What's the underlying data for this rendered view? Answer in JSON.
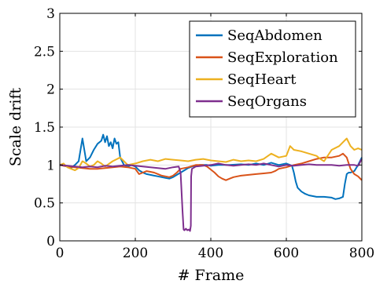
{
  "chart_data": {
    "type": "line",
    "title": "",
    "xlabel": "# Frame",
    "ylabel": "Scale drift",
    "xlim": [
      0,
      800
    ],
    "ylim": [
      0,
      3
    ],
    "xticks": [
      0,
      200,
      400,
      600,
      800
    ],
    "yticks": [
      0,
      0.5,
      1,
      1.5,
      2,
      2.5,
      3
    ],
    "ytick_labels": [
      "0",
      "0.5",
      "1",
      "1.5",
      "2",
      "2.5",
      "3"
    ],
    "grid": true,
    "legend_position": "top-right",
    "series": [
      {
        "name": "SeqAbdomen",
        "color": "#0072BD",
        "points": [
          [
            0,
            1.0
          ],
          [
            10,
            0.99
          ],
          [
            20,
            0.98
          ],
          [
            30,
            0.96
          ],
          [
            40,
            1.0
          ],
          [
            50,
            1.05
          ],
          [
            55,
            1.2
          ],
          [
            60,
            1.35
          ],
          [
            65,
            1.2
          ],
          [
            70,
            1.05
          ],
          [
            80,
            1.1
          ],
          [
            90,
            1.2
          ],
          [
            100,
            1.28
          ],
          [
            110,
            1.32
          ],
          [
            115,
            1.4
          ],
          [
            120,
            1.3
          ],
          [
            125,
            1.38
          ],
          [
            130,
            1.25
          ],
          [
            135,
            1.3
          ],
          [
            140,
            1.22
          ],
          [
            145,
            1.35
          ],
          [
            150,
            1.28
          ],
          [
            155,
            1.3
          ],
          [
            160,
            1.1
          ],
          [
            170,
            1.0
          ],
          [
            180,
            0.98
          ],
          [
            190,
            1.0
          ],
          [
            200,
            0.98
          ],
          [
            210,
            0.93
          ],
          [
            220,
            0.9
          ],
          [
            230,
            0.88
          ],
          [
            240,
            0.87
          ],
          [
            250,
            0.86
          ],
          [
            260,
            0.85
          ],
          [
            270,
            0.84
          ],
          [
            280,
            0.83
          ],
          [
            290,
            0.82
          ],
          [
            300,
            0.84
          ],
          [
            310,
            0.87
          ],
          [
            320,
            0.9
          ],
          [
            330,
            0.93
          ],
          [
            340,
            0.96
          ],
          [
            350,
            0.98
          ],
          [
            370,
            1.0
          ],
          [
            390,
            1.0
          ],
          [
            400,
            0.99
          ],
          [
            420,
            1.0
          ],
          [
            450,
            1.0
          ],
          [
            480,
            1.01
          ],
          [
            500,
            1.0
          ],
          [
            520,
            1.02
          ],
          [
            540,
            1.0
          ],
          [
            560,
            1.03
          ],
          [
            580,
            1.0
          ],
          [
            600,
            1.02
          ],
          [
            610,
            1.0
          ],
          [
            615,
            0.99
          ],
          [
            620,
            0.9
          ],
          [
            625,
            0.78
          ],
          [
            630,
            0.7
          ],
          [
            640,
            0.65
          ],
          [
            650,
            0.62
          ],
          [
            660,
            0.6
          ],
          [
            680,
            0.58
          ],
          [
            700,
            0.58
          ],
          [
            720,
            0.57
          ],
          [
            730,
            0.55
          ],
          [
            740,
            0.56
          ],
          [
            750,
            0.58
          ],
          [
            755,
            0.75
          ],
          [
            760,
            0.88
          ],
          [
            765,
            0.9
          ],
          [
            770,
            0.9
          ],
          [
            780,
            0.92
          ],
          [
            790,
            1.0
          ],
          [
            800,
            1.1
          ]
        ]
      },
      {
        "name": "SeqExploration",
        "color": "#D95319",
        "points": [
          [
            0,
            1.0
          ],
          [
            20,
            0.98
          ],
          [
            40,
            0.97
          ],
          [
            60,
            0.96
          ],
          [
            80,
            0.95
          ],
          [
            100,
            0.95
          ],
          [
            120,
            0.96
          ],
          [
            140,
            0.97
          ],
          [
            160,
            0.98
          ],
          [
            180,
            0.97
          ],
          [
            200,
            0.95
          ],
          [
            210,
            0.88
          ],
          [
            220,
            0.9
          ],
          [
            230,
            0.92
          ],
          [
            240,
            0.91
          ],
          [
            250,
            0.9
          ],
          [
            260,
            0.88
          ],
          [
            270,
            0.86
          ],
          [
            280,
            0.85
          ],
          [
            290,
            0.84
          ],
          [
            300,
            0.86
          ],
          [
            310,
            0.9
          ],
          [
            320,
            0.95
          ],
          [
            340,
            0.97
          ],
          [
            360,
            1.0
          ],
          [
            380,
            1.0
          ],
          [
            390,
            0.98
          ],
          [
            400,
            0.94
          ],
          [
            410,
            0.9
          ],
          [
            420,
            0.85
          ],
          [
            430,
            0.82
          ],
          [
            440,
            0.8
          ],
          [
            450,
            0.82
          ],
          [
            460,
            0.84
          ],
          [
            470,
            0.85
          ],
          [
            480,
            0.86
          ],
          [
            500,
            0.87
          ],
          [
            520,
            0.88
          ],
          [
            540,
            0.89
          ],
          [
            560,
            0.9
          ],
          [
            570,
            0.92
          ],
          [
            580,
            0.95
          ],
          [
            600,
            0.97
          ],
          [
            620,
            1.0
          ],
          [
            640,
            1.02
          ],
          [
            660,
            1.05
          ],
          [
            680,
            1.08
          ],
          [
            700,
            1.1
          ],
          [
            720,
            1.1
          ],
          [
            740,
            1.12
          ],
          [
            750,
            1.15
          ],
          [
            760,
            1.1
          ],
          [
            770,
            0.95
          ],
          [
            780,
            0.88
          ],
          [
            790,
            0.85
          ],
          [
            800,
            0.8
          ]
        ]
      },
      {
        "name": "SeqHeart",
        "color": "#EDB120",
        "points": [
          [
            0,
            1.0
          ],
          [
            10,
            1.02
          ],
          [
            20,
            0.97
          ],
          [
            30,
            0.95
          ],
          [
            40,
            0.93
          ],
          [
            50,
            0.96
          ],
          [
            60,
            1.05
          ],
          [
            70,
            1.02
          ],
          [
            80,
            0.98
          ],
          [
            90,
            1.0
          ],
          [
            100,
            1.05
          ],
          [
            110,
            1.02
          ],
          [
            120,
            0.98
          ],
          [
            140,
            1.05
          ],
          [
            160,
            1.1
          ],
          [
            170,
            1.05
          ],
          [
            180,
            1.0
          ],
          [
            200,
            1.02
          ],
          [
            220,
            1.05
          ],
          [
            240,
            1.07
          ],
          [
            260,
            1.05
          ],
          [
            280,
            1.08
          ],
          [
            300,
            1.07
          ],
          [
            320,
            1.06
          ],
          [
            340,
            1.05
          ],
          [
            360,
            1.07
          ],
          [
            380,
            1.08
          ],
          [
            400,
            1.06
          ],
          [
            420,
            1.05
          ],
          [
            440,
            1.04
          ],
          [
            460,
            1.07
          ],
          [
            480,
            1.05
          ],
          [
            500,
            1.06
          ],
          [
            520,
            1.05
          ],
          [
            540,
            1.08
          ],
          [
            560,
            1.15
          ],
          [
            580,
            1.1
          ],
          [
            600,
            1.12
          ],
          [
            610,
            1.25
          ],
          [
            620,
            1.2
          ],
          [
            640,
            1.18
          ],
          [
            660,
            1.15
          ],
          [
            680,
            1.12
          ],
          [
            690,
            1.08
          ],
          [
            700,
            1.05
          ],
          [
            720,
            1.2
          ],
          [
            740,
            1.25
          ],
          [
            750,
            1.3
          ],
          [
            760,
            1.35
          ],
          [
            770,
            1.25
          ],
          [
            780,
            1.2
          ],
          [
            790,
            1.22
          ],
          [
            800,
            1.2
          ]
        ]
      },
      {
        "name": "SeqOrgans",
        "color": "#7E2F8E",
        "points": [
          [
            0,
            1.0
          ],
          [
            20,
            0.99
          ],
          [
            40,
            0.98
          ],
          [
            60,
            0.97
          ],
          [
            80,
            0.98
          ],
          [
            100,
            0.97
          ],
          [
            120,
            0.99
          ],
          [
            140,
            0.98
          ],
          [
            160,
            0.99
          ],
          [
            180,
            1.0
          ],
          [
            200,
            0.99
          ],
          [
            220,
            0.98
          ],
          [
            240,
            0.97
          ],
          [
            260,
            0.96
          ],
          [
            280,
            0.95
          ],
          [
            300,
            0.97
          ],
          [
            315,
            0.98
          ],
          [
            320,
            0.9
          ],
          [
            325,
            0.4
          ],
          [
            328,
            0.15
          ],
          [
            330,
            0.14
          ],
          [
            334,
            0.16
          ],
          [
            338,
            0.14
          ],
          [
            342,
            0.15
          ],
          [
            345,
            0.13
          ],
          [
            347,
            0.2
          ],
          [
            348,
            0.85
          ],
          [
            350,
            0.95
          ],
          [
            360,
            0.98
          ],
          [
            380,
            0.99
          ],
          [
            400,
            1.0
          ],
          [
            420,
            1.02
          ],
          [
            440,
            1.0
          ],
          [
            460,
            0.99
          ],
          [
            480,
            1.0
          ],
          [
            500,
            1.01
          ],
          [
            520,
            1.0
          ],
          [
            540,
            1.02
          ],
          [
            560,
            1.0
          ],
          [
            580,
            0.98
          ],
          [
            600,
            1.0
          ],
          [
            620,
            0.99
          ],
          [
            640,
            1.0
          ],
          [
            660,
            1.01
          ],
          [
            680,
            1.0
          ],
          [
            700,
            1.0
          ],
          [
            720,
            1.0
          ],
          [
            740,
            0.99
          ],
          [
            760,
            1.0
          ],
          [
            780,
            1.0
          ],
          [
            790,
            0.99
          ],
          [
            800,
            1.08
          ]
        ]
      }
    ]
  }
}
